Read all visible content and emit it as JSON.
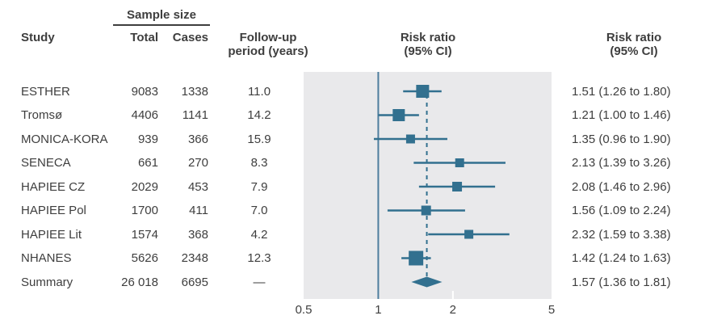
{
  "header": {
    "study": "Study",
    "sample_size": "Sample size",
    "total": "Total",
    "cases": "Cases",
    "followup_line1": "Follow-up",
    "followup_line2": "period (years)",
    "plot_title_line1": "Risk ratio",
    "plot_title_line2": "(95% CI)",
    "rr_col_line1": "Risk ratio",
    "rr_col_line2": "(95% CI)"
  },
  "colors": {
    "marker": "#32708f",
    "ci_line": "#32708f",
    "ref_line": "#4e7e9e",
    "dashed_line": "#32708f",
    "plot_bg": "#e9e9eb",
    "tick_mark": "#ffffff",
    "text": "#3e3e3e"
  },
  "chart_data": {
    "type": "forest",
    "x_scale": "log10",
    "x_domain": [
      0.5,
      5
    ],
    "x_ticks": [
      {
        "value": 0.5,
        "label": "0.5"
      },
      {
        "value": 1,
        "label": "1"
      },
      {
        "value": 2,
        "label": "2"
      },
      {
        "value": 5,
        "label": "5"
      }
    ],
    "reference_line": 1,
    "summary_estimate": 1.57,
    "rows": [
      {
        "study": "ESTHER",
        "total": "9083",
        "cases": "1338",
        "followup": "11.0",
        "est": 1.51,
        "lo": 1.26,
        "hi": 1.8,
        "label": "1.51 (1.26 to 1.80)",
        "marker": "square",
        "marker_size_px": 16
      },
      {
        "study": "Tromsø",
        "total": "4406",
        "cases": "1141",
        "followup": "14.2",
        "est": 1.21,
        "lo": 1.0,
        "hi": 1.46,
        "label": "1.21 (1.00 to 1.46)",
        "marker": "square",
        "marker_size_px": 15
      },
      {
        "study": "MONICA-KORA",
        "total": "939",
        "cases": "366",
        "followup": "15.9",
        "est": 1.35,
        "lo": 0.96,
        "hi": 1.9,
        "label": "1.35 (0.96 to 1.90)",
        "marker": "square",
        "marker_size_px": 11
      },
      {
        "study": "SENECA",
        "total": "661",
        "cases": "270",
        "followup": "8.3",
        "est": 2.13,
        "lo": 1.39,
        "hi": 3.26,
        "label": "2.13 (1.39 to 3.26)",
        "marker": "square",
        "marker_size_px": 11
      },
      {
        "study": "HAPIEE CZ",
        "total": "2029",
        "cases": "453",
        "followup": "7.9",
        "est": 2.08,
        "lo": 1.46,
        "hi": 2.96,
        "label": "2.08 (1.46 to 2.96)",
        "marker": "square",
        "marker_size_px": 12
      },
      {
        "study": "HAPIEE Pol",
        "total": "1700",
        "cases": "411",
        "followup": "7.0",
        "est": 1.56,
        "lo": 1.09,
        "hi": 2.24,
        "label": "1.56 (1.09 to 2.24)",
        "marker": "square",
        "marker_size_px": 12
      },
      {
        "study": "HAPIEE Lit",
        "total": "1574",
        "cases": "368",
        "followup": "4.2",
        "est": 2.32,
        "lo": 1.59,
        "hi": 3.38,
        "label": "2.32 (1.59 to 3.38)",
        "marker": "square",
        "marker_size_px": 11
      },
      {
        "study": "NHANES",
        "total": "5626",
        "cases": "2348",
        "followup": "12.3",
        "est": 1.42,
        "lo": 1.24,
        "hi": 1.63,
        "label": "1.42 (1.24 to 1.63)",
        "marker": "square",
        "marker_size_px": 18
      },
      {
        "study": "Summary",
        "total": "26 018",
        "cases": "6695",
        "followup": "—",
        "est": 1.57,
        "lo": 1.36,
        "hi": 1.81,
        "label": "1.57 (1.36 to 1.81)",
        "marker": "diamond",
        "marker_size_px": 38
      }
    ]
  }
}
